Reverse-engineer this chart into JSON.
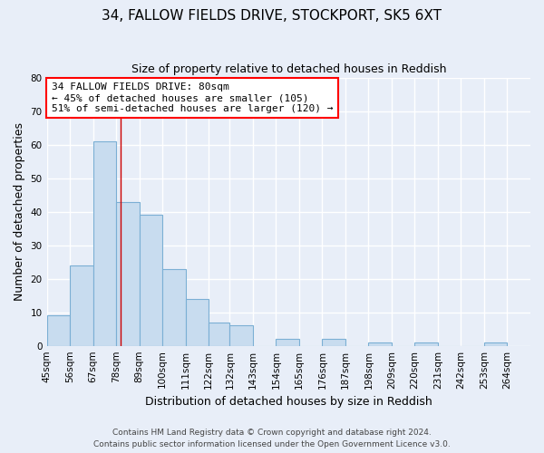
{
  "title": "34, FALLOW FIELDS DRIVE, STOCKPORT, SK5 6XT",
  "subtitle": "Size of property relative to detached houses in Reddish",
  "xlabel": "Distribution of detached houses by size in Reddish",
  "ylabel": "Number of detached properties",
  "bar_edges": [
    45,
    56,
    67,
    78,
    89,
    100,
    111,
    122,
    132,
    143,
    154,
    165,
    176,
    187,
    198,
    209,
    220,
    231,
    242,
    253,
    264
  ],
  "bar_heights": [
    9,
    24,
    61,
    43,
    39,
    23,
    14,
    7,
    6,
    0,
    2,
    0,
    2,
    0,
    1,
    0,
    1,
    0,
    0,
    1
  ],
  "bar_color": "#c8dcef",
  "bar_edgecolor": "#7bafd4",
  "vline_x": 80,
  "vline_color": "#cc0000",
  "ylim": [
    0,
    80
  ],
  "yticks": [
    0,
    10,
    20,
    30,
    40,
    50,
    60,
    70,
    80
  ],
  "xtick_labels": [
    "45sqm",
    "56sqm",
    "67sqm",
    "78sqm",
    "89sqm",
    "100sqm",
    "111sqm",
    "122sqm",
    "132sqm",
    "143sqm",
    "154sqm",
    "165sqm",
    "176sqm",
    "187sqm",
    "198sqm",
    "209sqm",
    "220sqm",
    "231sqm",
    "242sqm",
    "253sqm",
    "264sqm"
  ],
  "annotation_line1": "34 FALLOW FIELDS DRIVE: 80sqm",
  "annotation_line2": "← 45% of detached houses are smaller (105)",
  "annotation_line3": "51% of semi-detached houses are larger (120) →",
  "footer_line1": "Contains HM Land Registry data © Crown copyright and database right 2024.",
  "footer_line2": "Contains public sector information licensed under the Open Government Licence v3.0.",
  "background_color": "#e8eef8",
  "plot_bg_color": "#e8eef8",
  "grid_color": "#ffffff",
  "title_fontsize": 11,
  "subtitle_fontsize": 9,
  "axis_label_fontsize": 9,
  "tick_fontsize": 7.5,
  "footer_fontsize": 6.5,
  "annotation_fontsize": 8
}
